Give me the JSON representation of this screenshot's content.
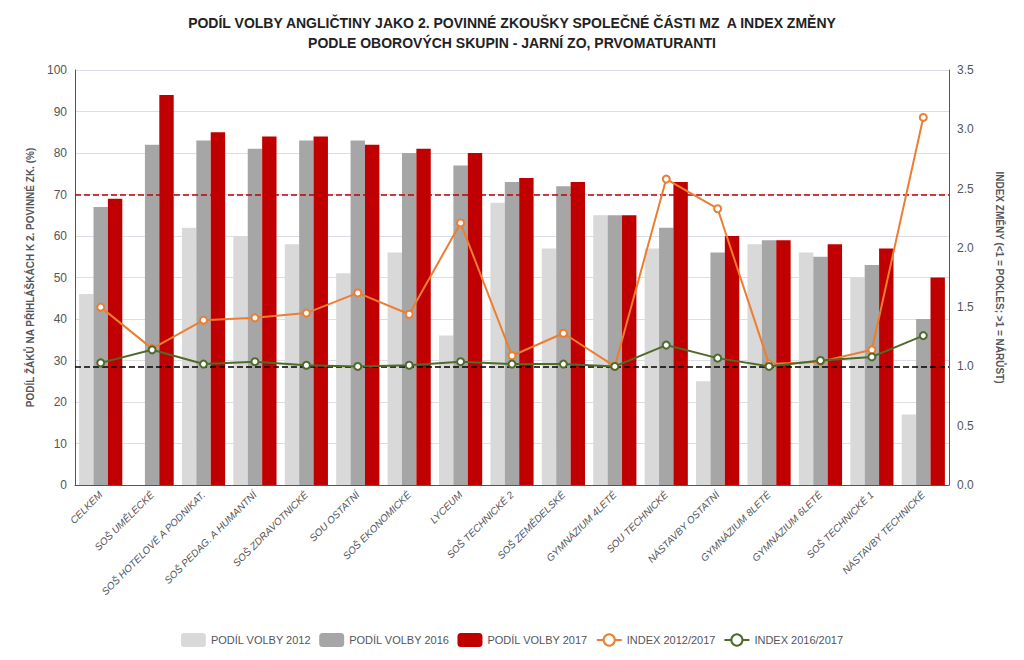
{
  "chart_data": {
    "type": "bar",
    "title": "PODÍL VOLBY ANGLIČTINY JAKO 2. POVINNÉ ZKOUŠKY SPOLEČNÉ ČÁSTI MZ  A INDEX ZMĚNY",
    "subtitle": "PODLE OBOROVÝCH SKUPIN - JARNÍ ZO, PRVOMATURANTI",
    "ylabel": "PODÍL ŽÁKŮ NA PŘIHLÁŠKÁCH K 2. POVINNÉ ZK. (%)",
    "y2label": "INDEX ZMĚNY (<1 = POKLES; >1 = NÁRŮST)",
    "categories": [
      "CELKEM",
      "SOŠ UMĚLECKÉ",
      "SOŠ HOTELOVÉ A PODNIKAT.",
      "SOŠ PEDAG. A HUMANTNÍ",
      "SOŠ ZDRAVOTNICKÉ",
      "SOU OSTATNÍ",
      "SOŠ EKONOMICKÉ",
      "LYCEUM",
      "SOŠ TECHNICKÉ 2",
      "SOŠ ZEMĚDELSKÉ",
      "GYMNÁZIUM 4LETÉ",
      "SOU TECHNICKÉ",
      "NÁSTAVBY OSTATNÍ",
      "GYMNÁZIUM 8LETÉ",
      "GYMNÁZIUM 6LETÉ",
      "SOŠ TECHNICKÉ 1",
      "NÁSTAVBY TECHNICKÉ"
    ],
    "series": [
      {
        "name": "PODÍL VOLBY 2012",
        "type": "bar",
        "color": "#d9d9d9",
        "values": [
          46,
          0,
          62,
          60,
          58,
          51,
          56,
          36,
          68,
          57,
          65,
          57,
          25,
          58,
          56,
          50,
          17
        ]
      },
      {
        "name": "PODÍL VOLBY 2016",
        "type": "bar",
        "color": "#a6a6a6",
        "values": [
          67,
          82,
          83,
          81,
          83,
          83,
          80,
          77,
          73,
          72,
          65,
          62,
          56,
          59,
          55,
          53,
          40
        ]
      },
      {
        "name": "PODÍL VOLBY 2017",
        "type": "bar",
        "color": "#c00000",
        "values": [
          69,
          94,
          85,
          84,
          84,
          82,
          81,
          80,
          74,
          73,
          65,
          73,
          60,
          59,
          58,
          57,
          50
        ]
      },
      {
        "name": "INDEX 2012/2017",
        "type": "line",
        "axis": "y2",
        "marker": "circle",
        "color": "#ed7d31",
        "values": [
          1.5,
          1.15,
          1.39,
          1.41,
          1.45,
          1.62,
          1.44,
          2.21,
          1.09,
          1.28,
          1.0,
          2.58,
          2.33,
          1.02,
          1.04,
          1.14,
          3.1
        ]
      },
      {
        "name": "INDEX 2016/2017",
        "type": "line",
        "axis": "y2",
        "marker": "circle",
        "color": "#4e6b2c",
        "values": [
          1.03,
          1.14,
          1.02,
          1.04,
          1.01,
          1.0,
          1.01,
          1.04,
          1.02,
          1.02,
          1.0,
          1.18,
          1.07,
          1.0,
          1.05,
          1.08,
          1.26
        ]
      }
    ],
    "reference_lines": [
      {
        "value": 70,
        "axis": "y",
        "color": "#c00000",
        "line_style": "dashed"
      },
      {
        "value": 1.0,
        "axis": "y2",
        "color": "#000000",
        "line_style": "dashed"
      }
    ],
    "ylim": [
      0,
      100
    ],
    "yticks": [
      0,
      10,
      20,
      30,
      40,
      50,
      60,
      70,
      80,
      90,
      100
    ],
    "y2lim": [
      0.0,
      3.5
    ],
    "y2ticks": [
      {
        "value": 0,
        "label": "0.0"
      },
      0.5,
      {
        "value": 1,
        "label": "1.0"
      },
      1.5,
      {
        "value": 2,
        "label": "2.0"
      },
      2.5,
      {
        "value": 3,
        "label": "3.0"
      },
      3.5
    ],
    "grid": true,
    "legend": "bottom"
  }
}
